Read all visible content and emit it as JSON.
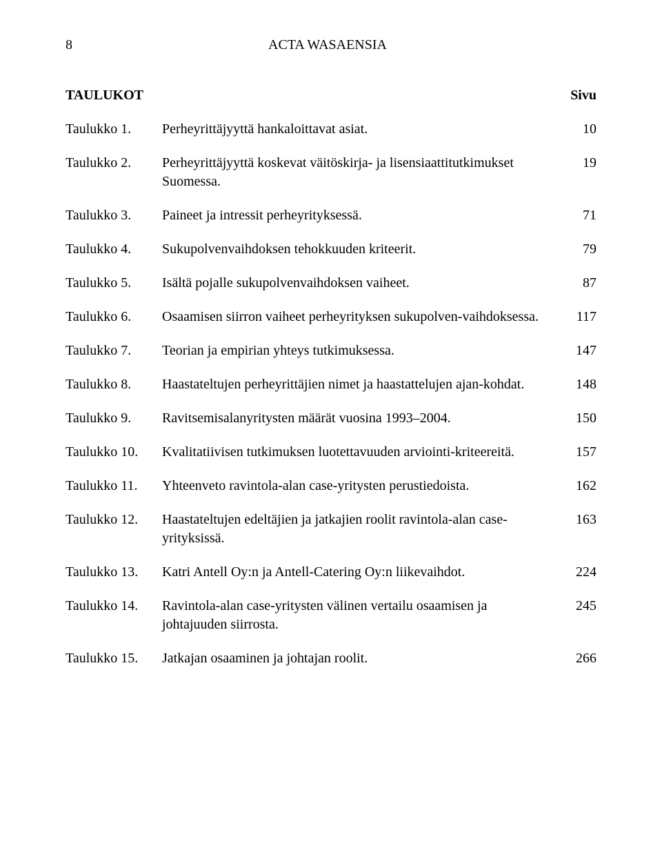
{
  "header": {
    "page_number": "8",
    "running_head": "ACTA WASAENSIA"
  },
  "list_heading": {
    "title": "TAULUKOT",
    "page_col": "Sivu"
  },
  "entries": [
    {
      "label": "Taulukko 1.",
      "desc": "Perheyrittäjyyttä hankaloittavat asiat.",
      "page": "10"
    },
    {
      "label": "Taulukko 2.",
      "desc": "Perheyrittäjyyttä koskevat väitöskirja- ja lisensiaattitutkimukset Suomessa.",
      "page": "19"
    },
    {
      "label": "Taulukko 3.",
      "desc": "Paineet ja intressit perheyrityksessä.",
      "page": "71"
    },
    {
      "label": "Taulukko 4.",
      "desc": "Sukupolvenvaihdoksen tehokkuuden kriteerit.",
      "page": "79"
    },
    {
      "label": "Taulukko 5.",
      "desc": "Isältä pojalle sukupolvenvaihdoksen vaiheet.",
      "page": "87"
    },
    {
      "label": "Taulukko 6.",
      "desc": "Osaamisen siirron vaiheet perheyrityksen sukupolven-vaihdoksessa.",
      "page": "117"
    },
    {
      "label": "Taulukko 7.",
      "desc": "Teorian ja empirian yhteys tutkimuksessa.",
      "page": "147"
    },
    {
      "label": "Taulukko 8.",
      "desc": "Haastateltujen perheyrittäjien nimet ja haastattelujen ajan-kohdat.",
      "page": "148"
    },
    {
      "label": "Taulukko 9.",
      "desc": "Ravitsemisalanyritysten määrät vuosina 1993–2004.",
      "page": "150"
    },
    {
      "label": "Taulukko 10.",
      "desc": "Kvalitatiivisen tutkimuksen luotettavuuden arviointi-kriteereitä.",
      "page": "157"
    },
    {
      "label": "Taulukko 11.",
      "desc": "Yhteenveto ravintola-alan case-yritysten perustiedoista.",
      "page": "162"
    },
    {
      "label": "Taulukko 12.",
      "desc": "Haastateltujen edeltäjien ja jatkajien roolit ravintola-alan case-yrityksissä.",
      "page": "163"
    },
    {
      "label": "Taulukko 13.",
      "desc": "Katri Antell Oy:n ja Antell-Catering Oy:n liikevaihdot.",
      "page": "224"
    },
    {
      "label": "Taulukko 14.",
      "desc": "Ravintola-alan case-yritysten välinen vertailu osaamisen ja johtajuuden siirrosta.",
      "page": "245"
    },
    {
      "label": "Taulukko 15.",
      "desc": "Jatkajan osaaminen ja johtajan roolit.",
      "page": "266"
    }
  ]
}
